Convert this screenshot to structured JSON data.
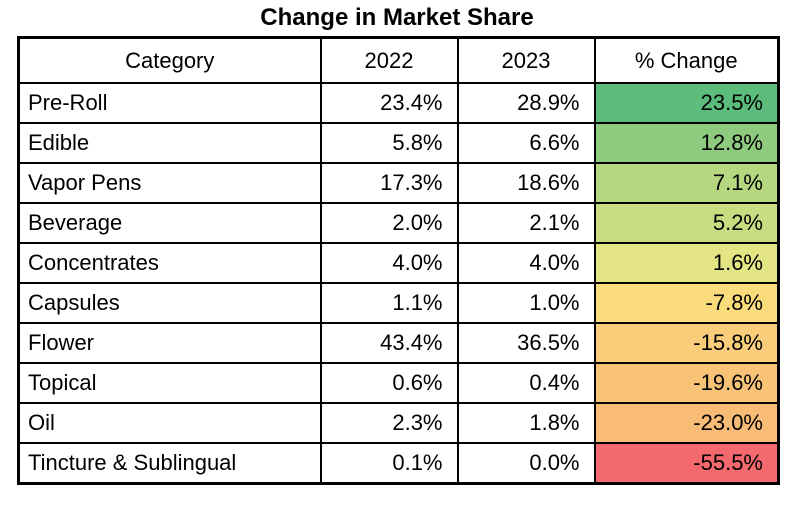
{
  "title": "Change in Market Share",
  "chart_data": {
    "type": "table",
    "title": "Change in Market Share",
    "columns": [
      "Category",
      "2022",
      "2023",
      "% Change"
    ],
    "color_scale_note": "green positive to red negative",
    "rows": [
      {
        "category": "Pre-Roll",
        "y2022": "23.4%",
        "y2023": "28.9%",
        "pct_change": "23.5%",
        "pct_change_value": 23.5,
        "color": "#5CBC7B"
      },
      {
        "category": "Edible",
        "y2022": "5.8%",
        "y2023": "6.6%",
        "pct_change": "12.8%",
        "pct_change_value": 12.8,
        "color": "#8FCB7E"
      },
      {
        "category": "Vapor Pens",
        "y2022": "17.3%",
        "y2023": "18.6%",
        "pct_change": "7.1%",
        "pct_change_value": 7.1,
        "color": "#B4D77F"
      },
      {
        "category": "Beverage",
        "y2022": "2.0%",
        "y2023": "2.1%",
        "pct_change": "5.2%",
        "pct_change_value": 5.2,
        "color": "#C9DC81"
      },
      {
        "category": "Concentrates",
        "y2022": "4.0%",
        "y2023": "4.0%",
        "pct_change": "1.6%",
        "pct_change_value": 1.6,
        "color": "#E3E483"
      },
      {
        "category": "Capsules",
        "y2022": "1.1%",
        "y2023": "1.0%",
        "pct_change": "-7.8%",
        "pct_change_value": -7.8,
        "color": "#FBDC7D"
      },
      {
        "category": "Flower",
        "y2022": "43.4%",
        "y2023": "36.5%",
        "pct_change": "-15.8%",
        "pct_change_value": -15.8,
        "color": "#FACD7A"
      },
      {
        "category": "Topical",
        "y2022": "0.6%",
        "y2023": "0.4%",
        "pct_change": "-19.6%",
        "pct_change_value": -19.6,
        "color": "#F9C377"
      },
      {
        "category": "Oil",
        "y2022": "2.3%",
        "y2023": "1.8%",
        "pct_change": "-23.0%",
        "pct_change_value": -23.0,
        "color": "#F9BC76"
      },
      {
        "category": "Tincture & Sublingual",
        "y2022": "0.1%",
        "y2023": "0.0%",
        "pct_change": "-55.5%",
        "pct_change_value": -55.5,
        "color": "#F4696E"
      }
    ]
  }
}
